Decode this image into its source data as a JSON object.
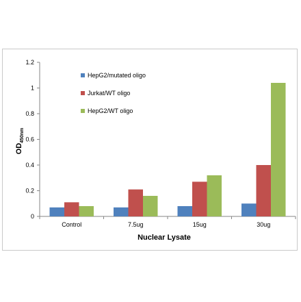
{
  "chart_data": {
    "type": "bar",
    "categories": [
      "Control",
      "7.5ug",
      "15ug",
      "30ug"
    ],
    "series": [
      {
        "name": "HepG2/mutated oligo",
        "color": "#4f81bd",
        "values": [
          0.07,
          0.07,
          0.08,
          0.1
        ]
      },
      {
        "name": "Jurkat/WT oligo",
        "color": "#c0504d",
        "values": [
          0.11,
          0.21,
          0.27,
          0.4
        ]
      },
      {
        "name": "HepG2/WT oligo",
        "color": "#9bbb59",
        "values": [
          0.08,
          0.16,
          0.32,
          1.04
        ]
      }
    ],
    "xlabel": "Nuclear Lysate",
    "ylabel_main": "OD",
    "ylabel_sub": "450nm",
    "ylim": [
      0,
      1.2
    ],
    "yticks": [
      "0",
      "0.2",
      "0.4",
      "0.6",
      "0.8",
      "1",
      "1.2"
    ],
    "grid": false,
    "legend_position": "top-left"
  }
}
